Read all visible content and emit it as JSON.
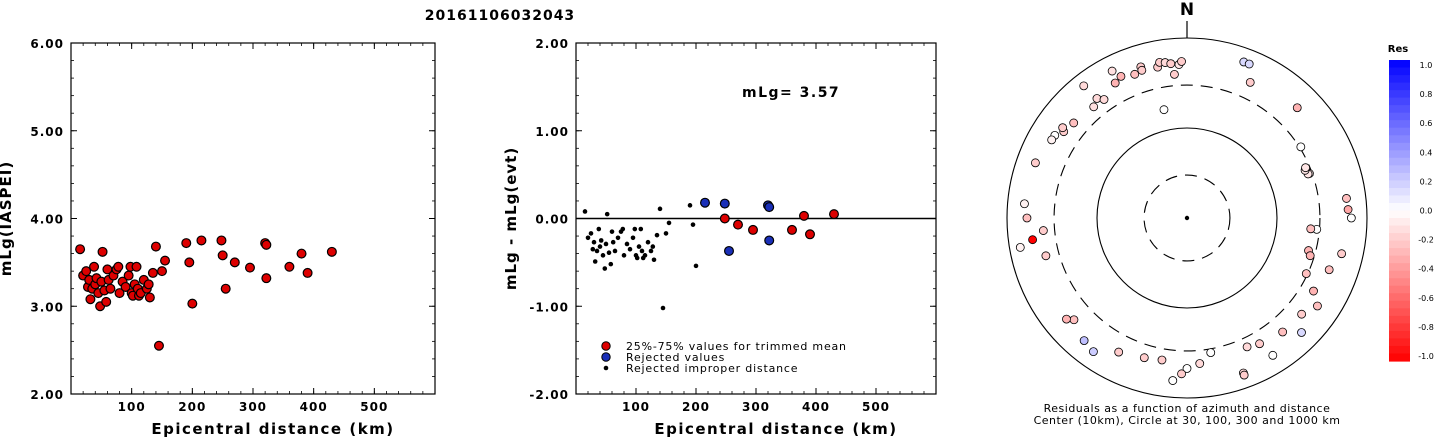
{
  "figure_title": "20161106032043",
  "colors": {
    "accepted": "#dd0000",
    "rejected": "#1a2fb8",
    "improper": "#000000",
    "axis": "#000000",
    "res_positive": "#0000ff",
    "res_negative": "#ff0000"
  },
  "chart_data": [
    {
      "type": "scatter",
      "title": "",
      "xlabel": "Epicentral distance (km)",
      "ylabel": "mLg(IASPEI)",
      "xlim": [
        0,
        600
      ],
      "ylim": [
        2.0,
        6.0
      ],
      "xticks": [
        100,
        200,
        300,
        400,
        500
      ],
      "yticks": [
        "2.00",
        "3.00",
        "4.00",
        "5.00",
        "6.00"
      ],
      "series": [
        {
          "marker": "filled-circle",
          "points": [
            [
              15,
              3.65
            ],
            [
              20,
              3.35
            ],
            [
              25,
              3.4
            ],
            [
              28,
              3.22
            ],
            [
              30,
              3.3
            ],
            [
              32,
              3.08
            ],
            [
              35,
              3.2
            ],
            [
              38,
              3.45
            ],
            [
              40,
              3.25
            ],
            [
              42,
              3.32
            ],
            [
              45,
              3.15
            ],
            [
              48,
              3.0
            ],
            [
              50,
              3.28
            ],
            [
              52,
              3.62
            ],
            [
              55,
              3.18
            ],
            [
              58,
              3.05
            ],
            [
              60,
              3.42
            ],
            [
              62,
              3.3
            ],
            [
              65,
              3.2
            ],
            [
              70,
              3.35
            ],
            [
              75,
              3.42
            ],
            [
              78,
              3.45
            ],
            [
              80,
              3.15
            ],
            [
              85,
              3.28
            ],
            [
              90,
              3.22
            ],
            [
              95,
              3.35
            ],
            [
              98,
              3.45
            ],
            [
              100,
              3.15
            ],
            [
              102,
              3.12
            ],
            [
              105,
              3.25
            ],
            [
              108,
              3.45
            ],
            [
              110,
              3.2
            ],
            [
              112,
              3.12
            ],
            [
              115,
              3.15
            ],
            [
              120,
              3.3
            ],
            [
              125,
              3.2
            ],
            [
              128,
              3.25
            ],
            [
              130,
              3.1
            ],
            [
              135,
              3.38
            ],
            [
              140,
              3.68
            ],
            [
              145,
              2.55
            ],
            [
              150,
              3.4
            ],
            [
              155,
              3.52
            ],
            [
              190,
              3.72
            ],
            [
              195,
              3.5
            ],
            [
              200,
              3.03
            ],
            [
              215,
              3.75
            ],
            [
              248,
              3.75
            ],
            [
              250,
              3.58
            ],
            [
              255,
              3.2
            ],
            [
              270,
              3.5
            ],
            [
              295,
              3.44
            ],
            [
              320,
              3.72
            ],
            [
              322,
              3.7
            ],
            [
              322,
              3.32
            ],
            [
              360,
              3.45
            ],
            [
              380,
              3.6
            ],
            [
              390,
              3.38
            ],
            [
              430,
              3.62
            ]
          ]
        }
      ]
    },
    {
      "type": "scatter",
      "title": "",
      "xlabel": "Epicentral distance (km)",
      "ylabel": "mLg - mLg(evt)",
      "xlim": [
        0,
        600
      ],
      "ylim": [
        -2.0,
        2.0
      ],
      "xticks": [
        100,
        200,
        300,
        400,
        500
      ],
      "yticks": [
        "-2.00",
        "-1.00",
        "0.00",
        "1.00",
        "2.00"
      ],
      "annotation": "mLg= 3.57",
      "reference_line": 0.0,
      "legend": [
        {
          "label": "25%-75% values for trimmed mean",
          "marker": "accepted"
        },
        {
          "label": "Rejected values",
          "marker": "rejected"
        },
        {
          "label": "Rejected improper distance",
          "marker": "improper"
        }
      ],
      "series": [
        {
          "name": "25%-75% values for trimmed mean",
          "marker": "accepted",
          "points": [
            [
              248,
              0.0
            ],
            [
              270,
              -0.07
            ],
            [
              295,
              -0.13
            ],
            [
              360,
              -0.13
            ],
            [
              380,
              0.03
            ],
            [
              390,
              -0.18
            ],
            [
              430,
              0.05
            ]
          ]
        },
        {
          "name": "Rejected values",
          "marker": "rejected",
          "points": [
            [
              215,
              0.18
            ],
            [
              248,
              0.17
            ],
            [
              255,
              -0.37
            ],
            [
              320,
              0.15
            ],
            [
              322,
              0.13
            ],
            [
              322,
              -0.25
            ]
          ]
        },
        {
          "name": "Rejected improper distance",
          "marker": "improper",
          "points": [
            [
              15,
              0.08
            ],
            [
              20,
              -0.22
            ],
            [
              25,
              -0.17
            ],
            [
              28,
              -0.35
            ],
            [
              30,
              -0.27
            ],
            [
              32,
              -0.49
            ],
            [
              35,
              -0.37
            ],
            [
              38,
              -0.12
            ],
            [
              40,
              -0.32
            ],
            [
              42,
              -0.25
            ],
            [
              45,
              -0.42
            ],
            [
              48,
              -0.57
            ],
            [
              50,
              -0.29
            ],
            [
              52,
              0.05
            ],
            [
              55,
              -0.39
            ],
            [
              58,
              -0.52
            ],
            [
              60,
              -0.15
            ],
            [
              62,
              -0.27
            ],
            [
              65,
              -0.37
            ],
            [
              70,
              -0.22
            ],
            [
              75,
              -0.15
            ],
            [
              78,
              -0.12
            ],
            [
              80,
              -0.42
            ],
            [
              85,
              -0.29
            ],
            [
              90,
              -0.35
            ],
            [
              95,
              -0.22
            ],
            [
              98,
              -0.12
            ],
            [
              100,
              -0.42
            ],
            [
              102,
              -0.45
            ],
            [
              105,
              -0.32
            ],
            [
              108,
              -0.12
            ],
            [
              110,
              -0.37
            ],
            [
              112,
              -0.45
            ],
            [
              115,
              -0.42
            ],
            [
              120,
              -0.27
            ],
            [
              125,
              -0.37
            ],
            [
              128,
              -0.32
            ],
            [
              130,
              -0.47
            ],
            [
              135,
              -0.19
            ],
            [
              140,
              0.11
            ],
            [
              145,
              -1.02
            ],
            [
              150,
              -0.17
            ],
            [
              155,
              -0.05
            ],
            [
              190,
              0.15
            ],
            [
              195,
              -0.07
            ],
            [
              200,
              -0.54
            ]
          ]
        }
      ]
    },
    {
      "type": "polar-scatter",
      "title": "",
      "north_label": "N",
      "caption_line1": "Residuals as a function of azimuth and distance",
      "caption_line2": "Center (10km), Circle at 30, 100, 300 and 1000 km",
      "rings_km": [
        30,
        100,
        300,
        1000
      ],
      "colorbar": {
        "title": "Res",
        "range": [
          -1.0,
          1.0
        ],
        "tick_labels": [
          "1.0",
          "0.8",
          "0.6",
          "0.4",
          "0.2",
          "0.0",
          "-0.2",
          "-0.4",
          "-0.6",
          "-0.8",
          "-1.0"
        ]
      },
      "points": [
        [
          20,
          700,
          0.15
        ],
        [
          22,
          700,
          0.15
        ],
        [
          322,
          730,
          -0.15
        ],
        [
          333,
          680,
          -0.12
        ],
        [
          335,
          545,
          -0.3
        ],
        [
          332,
          500,
          -0.3
        ],
        [
          340,
          500,
          -0.25
        ],
        [
          343,
          570,
          -0.2
        ],
        [
          343,
          520,
          -0.2
        ],
        [
          349,
          510,
          -0.2
        ],
        [
          350,
          570,
          -0.2
        ],
        [
          352,
          555,
          -0.15
        ],
        [
          354,
          530,
          -0.2
        ],
        [
          357,
          510,
          -0.1
        ],
        [
          358,
          550,
          -0.2
        ],
        [
          323,
          460,
          -0.15
        ],
        [
          320,
          410,
          -0.12
        ],
        [
          325,
          405,
          -0.15
        ],
        [
          305,
          470,
          -0.2
        ],
        [
          310,
          440,
          -0.25
        ],
        [
          302,
          540,
          0.0
        ],
        [
          300,
          545,
          -0.05
        ],
        [
          306,
          510,
          -0.2
        ],
        [
          290,
          620,
          -0.2
        ],
        [
          270,
          600,
          -0.25
        ],
        [
          275,
          650,
          -0.05
        ],
        [
          255,
          420,
          -0.2
        ],
        [
          265,
          400,
          -0.2
        ],
        [
          260,
          760,
          -0.05
        ],
        [
          262,
          540,
          -1.0
        ],
        [
          228,
          490,
          -0.25
        ],
        [
          215,
          650,
          0.2
        ],
        [
          220,
          600,
          0.25
        ],
        [
          230,
          560,
          -0.3
        ],
        [
          207,
          470,
          -0.2
        ],
        [
          197,
          420,
          -0.2
        ],
        [
          190,
          400,
          -0.2
        ],
        [
          180,
          470,
          0.0
        ],
        [
          182,
          540,
          -0.2
        ],
        [
          185,
          650,
          0.0
        ],
        [
          170,
          330,
          0.0
        ],
        [
          155,
          380,
          -0.15
        ],
        [
          150,
          410,
          -0.2
        ],
        [
          140,
          450,
          -0.25
        ],
        [
          120,
          420,
          -0.3
        ],
        [
          130,
          460,
          -0.2
        ],
        [
          124,
          560,
          -0.25
        ],
        [
          110,
          480,
          -0.25
        ],
        [
          103,
          580,
          -0.2
        ],
        [
          90,
          670,
          0.0
        ],
        [
          87,
          620,
          -0.35
        ],
        [
          83,
          610,
          -0.25
        ],
        [
          45,
          540,
          -0.3
        ],
        [
          58,
          310,
          0.0
        ],
        [
          70,
          280,
          -0.1
        ],
        [
          70,
          270,
          -0.1
        ],
        [
          68,
          260,
          -0.1
        ],
        [
          67,
          270,
          -0.1
        ],
        [
          95,
          280,
          0.0
        ],
        [
          95,
          240,
          -0.25
        ],
        [
          105,
          250,
          -0.3
        ],
        [
          107,
          270,
          -0.3
        ],
        [
          115,
          290,
          -0.25
        ],
        [
          148,
          630,
          0.0
        ],
        [
          160,
          680,
          -0.15
        ],
        [
          135,
          630,
          0.15
        ],
        [
          25,
          460,
          -0.2
        ],
        [
          -12,
          170,
          0.0
        ],
        [
          175,
          420,
          -0.15
        ],
        [
          -5,
          400,
          -0.2
        ],
        [
          160,
          720,
          -0.2
        ]
      ]
    }
  ]
}
